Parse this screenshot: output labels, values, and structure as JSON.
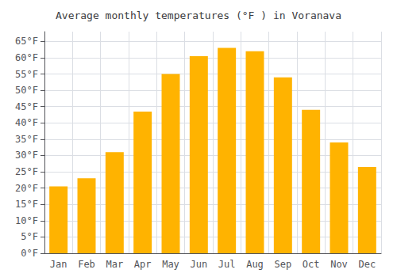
{
  "chart_data": {
    "type": "bar",
    "title": "Average monthly temperatures (°F ) in Voranava",
    "categories": [
      "Jan",
      "Feb",
      "Mar",
      "Apr",
      "May",
      "Jun",
      "Jul",
      "Aug",
      "Sep",
      "Oct",
      "Nov",
      "Dec"
    ],
    "values": [
      20.5,
      23.0,
      31.0,
      43.5,
      55.0,
      60.5,
      63.0,
      62.0,
      54.0,
      44.0,
      34.0,
      26.5
    ],
    "color": "#FFB300",
    "ylim": [
      0,
      68
    ],
    "yticks": [
      {
        "value": 0,
        "label": "0°F"
      },
      {
        "value": 5,
        "label": "5°F"
      },
      {
        "value": 10,
        "label": "10°F"
      },
      {
        "value": 15,
        "label": "15°F"
      },
      {
        "value": 20,
        "label": "20°F"
      },
      {
        "value": 25,
        "label": "25°F"
      },
      {
        "value": 30,
        "label": "30°F"
      },
      {
        "value": 35,
        "label": "35°F"
      },
      {
        "value": 40,
        "label": "40°F"
      },
      {
        "value": 45,
        "label": "45°F"
      },
      {
        "value": 50,
        "label": "50°F"
      },
      {
        "value": 55,
        "label": "55°F"
      },
      {
        "value": 60,
        "label": "60°F"
      },
      {
        "value": 65,
        "label": "65°F"
      }
    ],
    "grid": true
  }
}
